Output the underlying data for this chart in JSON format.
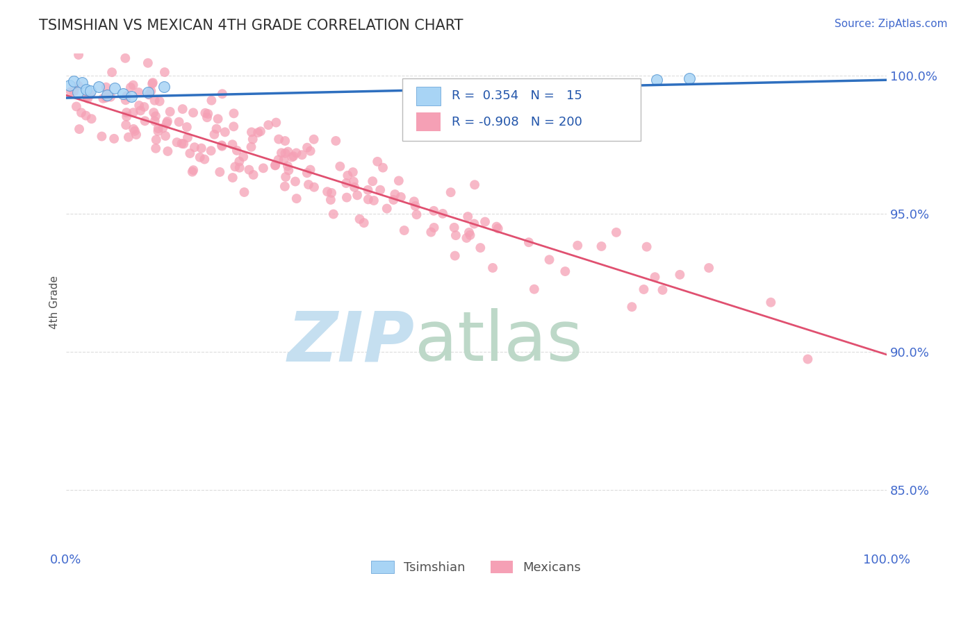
{
  "title": "TSIMSHIAN VS MEXICAN 4TH GRADE CORRELATION CHART",
  "source_text": "Source: ZipAtlas.com",
  "ylabel": "4th Grade",
  "x_min": 0.0,
  "x_max": 1.0,
  "y_min": 0.828,
  "y_max": 1.008,
  "y_ticks": [
    0.85,
    0.9,
    0.95,
    1.0
  ],
  "y_tick_labels": [
    "85.0%",
    "90.0%",
    "95.0%",
    "100.0%"
  ],
  "x_ticks": [
    0.0,
    0.25,
    0.5,
    0.75,
    1.0
  ],
  "x_tick_labels": [
    "0.0%",
    "",
    "",
    "",
    "100.0%"
  ],
  "tsimshian_R": 0.354,
  "tsimshian_N": 15,
  "mexican_R": -0.908,
  "mexican_N": 200,
  "tsimshian_color": "#A8D4F5",
  "tsimshian_edge_color": "#5B9BD5",
  "tsimshian_line_color": "#2E6FBF",
  "mexican_color": "#F5A0B5",
  "mexican_line_color": "#E05070",
  "background_color": "#FFFFFF",
  "title_color": "#303030",
  "axis_label_color": "#505050",
  "tick_color": "#4169CD",
  "grid_color": "#DCDCDC",
  "watermark_zip_color": "#C5DFF0",
  "watermark_atlas_color": "#BDD8C8",
  "legend_text_color": "#2255AA",
  "marker_size": 100,
  "tsimshian_line_y0": 0.992,
  "tsimshian_line_y1": 0.9985,
  "mexican_line_y0": 0.993,
  "mexican_line_y1": 0.899
}
